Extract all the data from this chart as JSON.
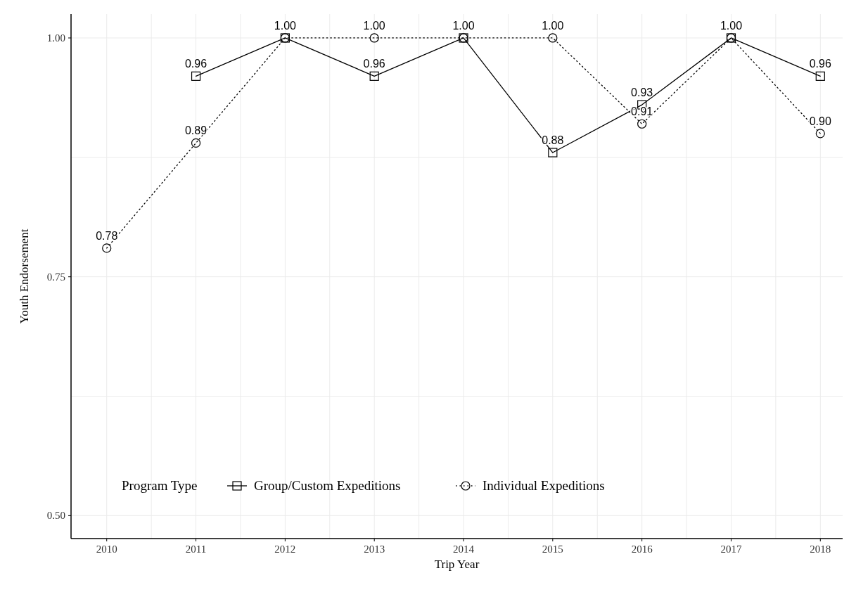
{
  "chart_data": {
    "type": "line",
    "xlabel": "Trip Year",
    "ylabel": "Youth Endorsement",
    "legend_title": "Program Type",
    "x": [
      2010,
      2011,
      2012,
      2013,
      2014,
      2015,
      2016,
      2017,
      2018
    ],
    "series": [
      {
        "name": "Group/Custom Expeditions",
        "color": "#000000",
        "marker": "square",
        "line_style": "solid",
        "values": [
          null,
          0.96,
          1.0,
          0.96,
          1.0,
          0.88,
          0.93,
          1.0,
          0.96
        ],
        "value_labels": [
          null,
          "0.96",
          "1.00",
          "0.96",
          "1.00",
          "0.88",
          "0.93",
          "1.00",
          "0.96"
        ]
      },
      {
        "name": "Individual Expeditions",
        "color": "#000000",
        "marker": "circle",
        "line_style": "dotted",
        "values": [
          0.78,
          0.89,
          1.0,
          1.0,
          1.0,
          1.0,
          0.91,
          1.0,
          0.9
        ],
        "value_labels": [
          "0.78",
          "0.89",
          null,
          "1.00",
          null,
          "1.00",
          "0.91",
          null,
          "0.90"
        ]
      }
    ],
    "xlim": [
      2009.6,
      2018.25
    ],
    "xticks": [
      2010,
      2011,
      2012,
      2013,
      2014,
      2015,
      2016,
      2017,
      2018
    ],
    "ylim": [
      0.476,
      1.025
    ],
    "yticks": [
      {
        "value": 0.5,
        "label": "0.50"
      },
      {
        "value": 0.75,
        "label": "0.75"
      },
      {
        "value": 1.0,
        "label": "1.00"
      }
    ],
    "grid": true,
    "legend": "bottom"
  }
}
